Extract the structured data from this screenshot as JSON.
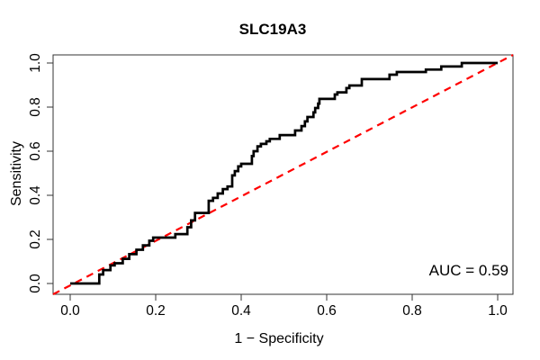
{
  "figure": {
    "title": "SLC19A3",
    "x_axis_label": "1 − Specificity",
    "y_axis_label": "Sensitivity",
    "auc_label": "AUC = 0.59"
  },
  "chart_data": {
    "type": "line",
    "subtype": "roc_curve",
    "title": "SLC19A3",
    "xlabel": "1 − Specificity",
    "ylabel": "Sensitivity",
    "xlim": [
      0,
      1
    ],
    "ylim": [
      0,
      1
    ],
    "xticks": [
      "0.0",
      "0.2",
      "0.4",
      "0.6",
      "0.8",
      "1.0"
    ],
    "yticks": [
      "0.0",
      "0.2",
      "0.4",
      "0.6",
      "0.8",
      "1.0"
    ],
    "grid": false,
    "legend": "none",
    "auc": 0.59,
    "annotation": {
      "text": "AUC = 0.59",
      "position": "bottom-right"
    },
    "series": [
      {
        "name": "ROC step curve",
        "color": "#000000",
        "line_style": "solid",
        "line_width": 2,
        "points": [
          [
            0,
            0
          ],
          [
            0.068,
            0
          ],
          [
            0.068,
            0.041
          ],
          [
            0.077,
            0.041
          ],
          [
            0.077,
            0.061
          ],
          [
            0.094,
            0.061
          ],
          [
            0.094,
            0.082
          ],
          [
            0.104,
            0.082
          ],
          [
            0.104,
            0.092
          ],
          [
            0.123,
            0.092
          ],
          [
            0.123,
            0.112
          ],
          [
            0.138,
            0.112
          ],
          [
            0.138,
            0.133
          ],
          [
            0.155,
            0.133
          ],
          [
            0.155,
            0.153
          ],
          [
            0.17,
            0.153
          ],
          [
            0.17,
            0.173
          ],
          [
            0.185,
            0.173
          ],
          [
            0.185,
            0.194
          ],
          [
            0.194,
            0.194
          ],
          [
            0.194,
            0.208
          ],
          [
            0.246,
            0.208
          ],
          [
            0.246,
            0.224
          ],
          [
            0.274,
            0.224
          ],
          [
            0.274,
            0.255
          ],
          [
            0.283,
            0.255
          ],
          [
            0.283,
            0.286
          ],
          [
            0.292,
            0.286
          ],
          [
            0.292,
            0.32
          ],
          [
            0.324,
            0.32
          ],
          [
            0.324,
            0.375
          ],
          [
            0.334,
            0.375
          ],
          [
            0.334,
            0.388
          ],
          [
            0.345,
            0.388
          ],
          [
            0.345,
            0.408
          ],
          [
            0.357,
            0.408
          ],
          [
            0.357,
            0.428
          ],
          [
            0.368,
            0.428
          ],
          [
            0.368,
            0.44
          ],
          [
            0.379,
            0.44
          ],
          [
            0.379,
            0.49
          ],
          [
            0.385,
            0.49
          ],
          [
            0.385,
            0.51
          ],
          [
            0.393,
            0.51
          ],
          [
            0.393,
            0.531
          ],
          [
            0.4,
            0.531
          ],
          [
            0.4,
            0.543
          ],
          [
            0.425,
            0.543
          ],
          [
            0.425,
            0.578
          ],
          [
            0.429,
            0.578
          ],
          [
            0.429,
            0.6
          ],
          [
            0.438,
            0.6
          ],
          [
            0.438,
            0.622
          ],
          [
            0.446,
            0.622
          ],
          [
            0.446,
            0.633
          ],
          [
            0.459,
            0.633
          ],
          [
            0.459,
            0.645
          ],
          [
            0.467,
            0.645
          ],
          [
            0.467,
            0.656
          ],
          [
            0.49,
            0.656
          ],
          [
            0.49,
            0.673
          ],
          [
            0.526,
            0.673
          ],
          [
            0.526,
            0.694
          ],
          [
            0.541,
            0.694
          ],
          [
            0.541,
            0.714
          ],
          [
            0.549,
            0.714
          ],
          [
            0.549,
            0.735
          ],
          [
            0.555,
            0.735
          ],
          [
            0.555,
            0.755
          ],
          [
            0.569,
            0.755
          ],
          [
            0.569,
            0.776
          ],
          [
            0.573,
            0.776
          ],
          [
            0.573,
            0.796
          ],
          [
            0.58,
            0.796
          ],
          [
            0.58,
            0.816
          ],
          [
            0.583,
            0.816
          ],
          [
            0.583,
            0.837
          ],
          [
            0.619,
            0.837
          ],
          [
            0.619,
            0.857
          ],
          [
            0.625,
            0.857
          ],
          [
            0.625,
            0.867
          ],
          [
            0.646,
            0.867
          ],
          [
            0.646,
            0.886
          ],
          [
            0.653,
            0.886
          ],
          [
            0.653,
            0.898
          ],
          [
            0.682,
            0.898
          ],
          [
            0.682,
            0.927
          ],
          [
            0.747,
            0.927
          ],
          [
            0.747,
            0.947
          ],
          [
            0.764,
            0.947
          ],
          [
            0.764,
            0.959
          ],
          [
            0.832,
            0.959
          ],
          [
            0.832,
            0.97
          ],
          [
            0.868,
            0.97
          ],
          [
            0.868,
            0.984
          ],
          [
            0.916,
            0.984
          ],
          [
            0.916,
            1
          ],
          [
            1,
            1
          ]
        ]
      },
      {
        "name": "chance diagonal",
        "color": "#ff0000",
        "line_style": "dashed",
        "line_width": 2,
        "points": [
          [
            0,
            0
          ],
          [
            1,
            1
          ]
        ]
      }
    ]
  },
  "colors": {
    "background": "#ffffff",
    "curve": "#000000",
    "diagonal": "#ff0000",
    "axis": "#000000"
  }
}
